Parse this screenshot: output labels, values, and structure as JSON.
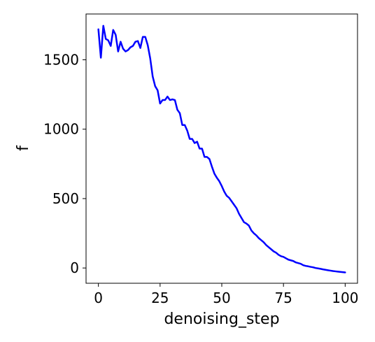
{
  "chart_data": {
    "type": "line",
    "xlabel": "denoising_step",
    "ylabel": "f",
    "xlim": [
      -5,
      105
    ],
    "ylim": [
      -110,
      1830
    ],
    "grid": false,
    "xticks": [
      0,
      25,
      50,
      75,
      100
    ],
    "yticks": [
      0,
      500,
      1000,
      1500
    ],
    "xtick_labels": [
      "0",
      "25",
      "50",
      "75",
      "100"
    ],
    "ytick_labels": [
      "0",
      "500",
      "1000",
      "1500"
    ],
    "series": [
      {
        "color": "#0000ff",
        "x": [
          0,
          1,
          2,
          3,
          4,
          5,
          6,
          7,
          8,
          9,
          10,
          11,
          12,
          13,
          14,
          15,
          16,
          17,
          18,
          19,
          20,
          21,
          22,
          23,
          24,
          25,
          26,
          27,
          28,
          29,
          30,
          31,
          32,
          33,
          34,
          35,
          36,
          37,
          38,
          39,
          40,
          41,
          42,
          43,
          44,
          45,
          46,
          47,
          48,
          49,
          50,
          51,
          52,
          53,
          54,
          55,
          56,
          57,
          58,
          59,
          60,
          61,
          62,
          63,
          64,
          65,
          66,
          67,
          68,
          69,
          70,
          71,
          72,
          73,
          74,
          75,
          76,
          77,
          78,
          79,
          80,
          81,
          82,
          83,
          84,
          85,
          86,
          87,
          88,
          89,
          90,
          91,
          92,
          93,
          94,
          95,
          96,
          97,
          98,
          99,
          100
        ],
        "y": [
          1720,
          1515,
          1745,
          1650,
          1640,
          1600,
          1715,
          1680,
          1560,
          1630,
          1580,
          1560,
          1570,
          1590,
          1600,
          1630,
          1635,
          1585,
          1665,
          1665,
          1605,
          1510,
          1380,
          1310,
          1280,
          1185,
          1210,
          1210,
          1235,
          1210,
          1215,
          1210,
          1140,
          1115,
          1030,
          1030,
          990,
          930,
          930,
          900,
          910,
          860,
          860,
          800,
          800,
          785,
          730,
          680,
          650,
          625,
          590,
          550,
          520,
          505,
          480,
          455,
          430,
          390,
          360,
          330,
          320,
          305,
          270,
          250,
          235,
          215,
          200,
          185,
          165,
          150,
          135,
          120,
          110,
          95,
          85,
          80,
          70,
          60,
          55,
          50,
          40,
          35,
          30,
          20,
          15,
          12,
          8,
          5,
          0,
          -3,
          -6,
          -10,
          -13,
          -16,
          -19,
          -22,
          -24,
          -26,
          -28,
          -30,
          -32
        ]
      }
    ]
  }
}
